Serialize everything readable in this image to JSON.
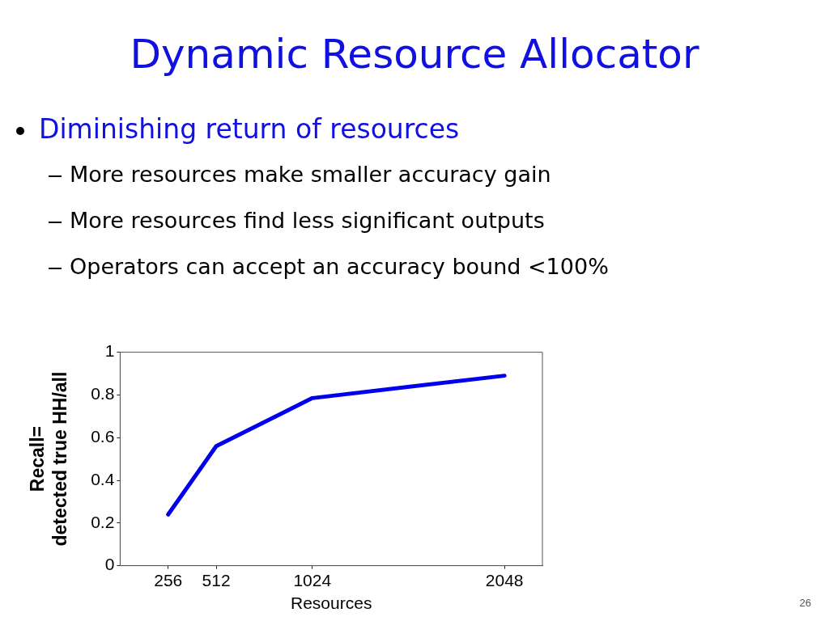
{
  "chart_data": {
    "type": "line",
    "title": "Dynamic Resource Allocator",
    "subtitle": "Diminishing return of resources",
    "annotations": [
      "More resources make smaller accuracy gain",
      "More resources find less significant outputs",
      "Operators can accept an accuracy bound <100%",
      "26"
    ],
    "xlabel": "Resources",
    "ylabel": "Recall=\ndetected true HH/all",
    "x": [
      256,
      512,
      1024,
      2048
    ],
    "series": [
      {
        "color": "#0000ee",
        "values": [
          0.24,
          0.56,
          0.785,
          0.89
        ]
      }
    ],
    "xlim": [
      0,
      2250
    ],
    "xticks": [
      256,
      512,
      1024,
      2048
    ],
    "ylim": [
      0,
      1
    ],
    "yticks": [
      0,
      0.2,
      0.4,
      0.6,
      0.8,
      1
    ],
    "grid": false,
    "legend": false,
    "marker": "none",
    "line_style": "solid"
  }
}
